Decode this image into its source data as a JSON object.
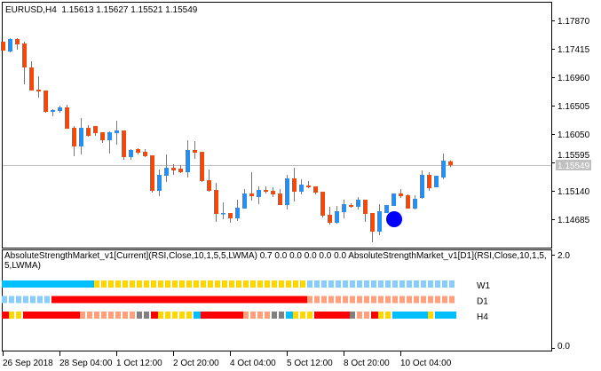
{
  "header": {
    "symbol_timeframe": "EURUSD,H4",
    "open": "1.15613",
    "high": "1.15627",
    "low": "1.15521",
    "close": "1.15549"
  },
  "colors": {
    "bull": "#1e90ff",
    "bear": "#ff4500",
    "price_line": "#c0c0c0",
    "signal_dot": "#0000ff",
    "cyan": "#00bfff",
    "yellow": "#ffd700",
    "lightblue": "#87cefa",
    "red": "#ff0000",
    "salmon": "#ffa07a",
    "gray": "#808080"
  },
  "price_axis": {
    "ticks": [
      "1.17870",
      "1.17415",
      "1.16960",
      "1.16505",
      "1.16050",
      "1.15595",
      "1.15140",
      "1.14685"
    ],
    "current_price": "1.15549"
  },
  "candles": [
    [
      1.17529,
      1.17529,
      1.17386,
      1.17386
    ],
    [
      1.17372,
      1.17586,
      1.17358,
      1.17571
    ],
    [
      1.17571,
      1.17586,
      1.17401,
      1.17486
    ],
    [
      1.175,
      1.17529,
      1.16846,
      1.17116
    ],
    [
      1.17116,
      1.17216,
      1.16747,
      1.16747
    ],
    [
      1.16761,
      1.16974,
      1.16633,
      1.16732
    ],
    [
      1.16747,
      1.16747,
      1.16391,
      1.16405
    ],
    [
      1.16405,
      1.16448,
      1.16334,
      1.16434
    ],
    [
      1.16419,
      1.16505,
      1.16391,
      1.16476
    ],
    [
      1.16476,
      1.16519,
      1.16135,
      1.16135
    ],
    [
      1.16149,
      1.16178,
      1.15694,
      1.15851
    ],
    [
      1.15851,
      1.16306,
      1.15723,
      1.16149
    ],
    [
      1.16149,
      1.16192,
      1.16007,
      1.16021
    ],
    [
      1.16178,
      1.16178,
      1.16021,
      1.16064
    ],
    [
      1.16078,
      1.16078,
      1.15908,
      1.1595
    ],
    [
      1.1595,
      1.16092,
      1.15737,
      1.16078
    ],
    [
      1.16064,
      1.16263,
      1.15879,
      1.16107
    ],
    [
      1.16107,
      1.16107,
      1.15637,
      1.1568
    ],
    [
      1.1568,
      1.15808,
      1.15637,
      1.15794
    ],
    [
      1.15808,
      1.15822,
      1.15723,
      1.15751
    ],
    [
      1.15765,
      1.15808,
      1.1568,
      1.15694
    ],
    [
      1.15708,
      1.15708,
      1.15111,
      1.1514
    ],
    [
      1.1514,
      1.15481,
      1.15054,
      1.15396
    ],
    [
      1.15381,
      1.15723,
      1.15282,
      1.15509
    ],
    [
      1.15509,
      1.15566,
      1.15396,
      1.15467
    ],
    [
      1.15495,
      1.15552,
      1.15424,
      1.15438
    ],
    [
      1.15438,
      1.1595,
      1.15353,
      1.15794
    ],
    [
      1.15794,
      1.15936,
      1.15652,
      1.15751
    ],
    [
      1.15765,
      1.15765,
      1.15282,
      1.15296
    ],
    [
      1.1531,
      1.15481,
      1.15125,
      1.1514
    ],
    [
      1.15154,
      1.15268,
      1.14642,
      1.1477
    ],
    [
      1.1477,
      1.14955,
      1.14685,
      1.14784
    ],
    [
      1.14784,
      1.14784,
      1.14628,
      1.14699
    ],
    [
      1.14699,
      1.14997,
      1.14656,
      1.1487
    ],
    [
      1.14855,
      1.15168,
      1.14855,
      1.15097
    ],
    [
      1.15097,
      1.15438,
      1.14983,
      1.15054
    ],
    [
      1.1504,
      1.15211,
      1.14926,
      1.15154
    ],
    [
      1.15154,
      1.15211,
      1.15097,
      1.15125
    ],
    [
      1.1514,
      1.15197,
      1.1504,
      1.15083
    ],
    [
      1.15097,
      1.15168,
      1.14912,
      1.14912
    ],
    [
      1.14912,
      1.15396,
      1.14841,
      1.15339
    ],
    [
      1.15339,
      1.15509,
      1.14969,
      1.15125
    ],
    [
      1.15125,
      1.15325,
      1.15083,
      1.15239
    ],
    [
      1.15225,
      1.15296,
      1.15182,
      1.15197
    ],
    [
      1.15211,
      1.15211,
      1.15083,
      1.15111
    ],
    [
      1.15125,
      1.15125,
      1.14713,
      1.14742
    ],
    [
      1.14756,
      1.14884,
      1.14599,
      1.14628
    ],
    [
      1.14628,
      1.14898,
      1.14614,
      1.14813
    ],
    [
      1.14798,
      1.14997,
      1.14699,
      1.14926
    ],
    [
      1.14912,
      1.14941,
      1.1487,
      1.14884
    ],
    [
      1.14884,
      1.1504,
      1.14841,
      1.14997
    ],
    [
      1.14997,
      1.14997,
      1.14642,
      1.1477
    ],
    [
      1.14784,
      1.14784,
      1.14315,
      1.14486
    ],
    [
      1.14486,
      1.14926,
      1.14429,
      1.14813
    ],
    [
      1.14784,
      1.14912,
      1.14784,
      1.14912
    ],
    [
      1.14898,
      1.15097,
      1.14898,
      1.15097
    ],
    [
      1.15097,
      1.15168,
      1.15026,
      1.15054
    ],
    [
      1.15069,
      1.15083,
      1.14855,
      1.14855
    ],
    [
      1.14855,
      1.15069,
      1.14841,
      1.15012
    ],
    [
      1.15026,
      1.15467,
      1.15012,
      1.15396
    ],
    [
      1.15396,
      1.15438,
      1.1514,
      1.15182
    ],
    [
      1.15197,
      1.15381,
      1.15197,
      1.15381
    ],
    [
      1.15353,
      1.15737,
      1.15325,
      1.15623
    ],
    [
      1.15613,
      1.15627,
      1.15521,
      1.15549
    ]
  ],
  "signal_dot": {
    "candle_index": 55,
    "price": 1.14685
  },
  "indicator": {
    "title": "AbsoluteStrengthMarket_v1[Current](RSI,Close,10,1,5,5,LWMA) 0.7 0.0 0.0 0.0 0.0 0.0 AbsoluteStrengthMarket_v1[D1](RSI,Close,10,1,5,5,LWMA)",
    "scale_max": "2.0",
    "scale_min": "0.0",
    "rows": [
      {
        "label": "W1",
        "runs": [
          [
            "cyan",
            13
          ],
          [
            "yellow",
            30
          ],
          [
            "lightblue",
            21
          ]
        ]
      },
      {
        "label": "D1",
        "runs": [
          [
            "lightblue",
            7
          ],
          [
            "red",
            36
          ],
          [
            "salmon",
            21
          ]
        ]
      },
      {
        "label": "H4",
        "runs": [
          [
            "red",
            1
          ],
          [
            "yellow",
            2
          ],
          [
            "red",
            8
          ],
          [
            "salmon",
            8
          ],
          [
            "gray",
            2
          ],
          [
            "red",
            1
          ],
          [
            "yellow",
            5
          ],
          [
            "cyan",
            1
          ],
          [
            "red",
            6
          ],
          [
            "salmon",
            4
          ],
          [
            "gray",
            2
          ],
          [
            "cyan",
            1
          ],
          [
            "yellow",
            3
          ],
          [
            "red",
            5
          ],
          [
            "gray",
            1
          ],
          [
            "salmon",
            2
          ],
          [
            "red",
            1
          ],
          [
            "yellow",
            2
          ],
          [
            "cyan",
            5
          ],
          [
            "yellow",
            1
          ],
          [
            "cyan",
            3
          ]
        ]
      }
    ]
  },
  "time_axis": {
    "labels": [
      "26 Sep 2018",
      "28 Sep 04:00",
      "1 Oct 12:00",
      "2 Oct 20:00",
      "4 Oct 04:00",
      "5 Oct 12:00",
      "8 Oct 20:00",
      "10 Oct 04:00"
    ],
    "candle_indices": [
      0,
      8,
      16,
      24,
      32,
      40,
      48,
      56
    ]
  }
}
